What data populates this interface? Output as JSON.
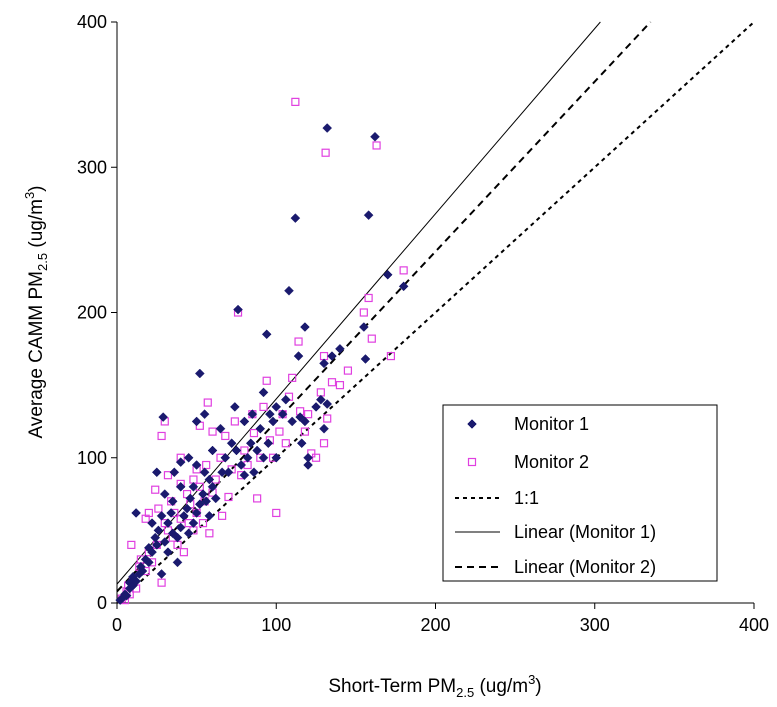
{
  "chart_data": {
    "type": "scatter",
    "xlabel": {
      "main": "Short-Term PM",
      "sub": "2.5",
      "unit_pre": " (ug/m",
      "sup": "3",
      "unit_post": ")"
    },
    "ylabel": {
      "main": "Average CAMM PM",
      "sub": "2.5",
      "unit_pre": " (ug/m",
      "sup": "3",
      "unit_post": ")"
    },
    "xlim": [
      0,
      400
    ],
    "ylim": [
      0,
      400
    ],
    "x_ticks": [
      "0",
      "100",
      "200",
      "300",
      "400"
    ],
    "y_ticks": [
      "0",
      "100",
      "200",
      "300",
      "400"
    ],
    "grid": false,
    "legend_position": "bottom-right",
    "series": [
      {
        "name": "Monitor 1",
        "marker": "diamond",
        "color": "#1a1a6e",
        "points": [
          [
            2,
            2
          ],
          [
            4,
            4
          ],
          [
            5,
            6
          ],
          [
            6,
            5
          ],
          [
            8,
            10
          ],
          [
            8,
            14
          ],
          [
            10,
            12
          ],
          [
            10,
            18
          ],
          [
            12,
            15
          ],
          [
            12,
            62
          ],
          [
            14,
            20
          ],
          [
            15,
            25
          ],
          [
            16,
            22
          ],
          [
            18,
            30
          ],
          [
            20,
            28
          ],
          [
            20,
            38
          ],
          [
            22,
            35
          ],
          [
            22,
            55
          ],
          [
            24,
            45
          ],
          [
            25,
            40
          ],
          [
            25,
            90
          ],
          [
            26,
            50
          ],
          [
            28,
            60
          ],
          [
            28,
            20
          ],
          [
            29,
            128
          ],
          [
            30,
            42
          ],
          [
            30,
            75
          ],
          [
            32,
            55
          ],
          [
            32,
            35
          ],
          [
            34,
            62
          ],
          [
            35,
            70
          ],
          [
            35,
            48
          ],
          [
            36,
            90
          ],
          [
            38,
            45
          ],
          [
            38,
            28
          ],
          [
            40,
            52
          ],
          [
            40,
            80
          ],
          [
            40,
            97
          ],
          [
            42,
            60
          ],
          [
            44,
            65
          ],
          [
            45,
            48
          ],
          [
            45,
            100
          ],
          [
            46,
            72
          ],
          [
            48,
            55
          ],
          [
            48,
            80
          ],
          [
            50,
            62
          ],
          [
            50,
            95
          ],
          [
            50,
            125
          ],
          [
            52,
            158
          ],
          [
            52,
            68
          ],
          [
            54,
            75
          ],
          [
            55,
            90
          ],
          [
            55,
            130
          ],
          [
            56,
            70
          ],
          [
            58,
            85
          ],
          [
            58,
            60
          ],
          [
            60,
            80
          ],
          [
            60,
            105
          ],
          [
            62,
            72
          ],
          [
            65,
            120
          ],
          [
            66,
            90
          ],
          [
            68,
            100
          ],
          [
            70,
            90
          ],
          [
            72,
            110
          ],
          [
            74,
            135
          ],
          [
            75,
            105
          ],
          [
            76,
            202
          ],
          [
            78,
            95
          ],
          [
            80,
            88
          ],
          [
            80,
            125
          ],
          [
            82,
            100
          ],
          [
            84,
            110
          ],
          [
            85,
            130
          ],
          [
            86,
            90
          ],
          [
            88,
            105
          ],
          [
            90,
            120
          ],
          [
            92,
            100
          ],
          [
            92,
            145
          ],
          [
            94,
            185
          ],
          [
            95,
            110
          ],
          [
            96,
            130
          ],
          [
            98,
            125
          ],
          [
            100,
            100
          ],
          [
            100,
            135
          ],
          [
            104,
            130
          ],
          [
            106,
            140
          ],
          [
            108,
            215
          ],
          [
            110,
            125
          ],
          [
            112,
            265
          ],
          [
            114,
            170
          ],
          [
            115,
            128
          ],
          [
            116,
            110
          ],
          [
            118,
            190
          ],
          [
            118,
            125
          ],
          [
            120,
            100
          ],
          [
            120,
            95
          ],
          [
            125,
            135
          ],
          [
            128,
            140
          ],
          [
            130,
            165
          ],
          [
            130,
            120
          ],
          [
            132,
            327
          ],
          [
            132,
            137
          ],
          [
            135,
            170
          ],
          [
            140,
            175
          ],
          [
            155,
            190
          ],
          [
            156,
            168
          ],
          [
            158,
            267
          ],
          [
            162,
            321
          ],
          [
            170,
            226
          ],
          [
            180,
            218
          ]
        ]
      },
      {
        "name": "Monitor 2",
        "marker": "square-open",
        "color": "#e040e0",
        "points": [
          [
            3,
            3
          ],
          [
            5,
            2
          ],
          [
            6,
            8
          ],
          [
            7,
            12
          ],
          [
            8,
            6
          ],
          [
            9,
            40
          ],
          [
            10,
            15
          ],
          [
            12,
            10
          ],
          [
            14,
            25
          ],
          [
            15,
            30
          ],
          [
            18,
            22
          ],
          [
            18,
            58
          ],
          [
            20,
            35
          ],
          [
            20,
            62
          ],
          [
            22,
            28
          ],
          [
            24,
            78
          ],
          [
            25,
            40
          ],
          [
            26,
            65
          ],
          [
            28,
            115
          ],
          [
            28,
            14
          ],
          [
            30,
            125
          ],
          [
            30,
            55
          ],
          [
            32,
            50
          ],
          [
            32,
            88
          ],
          [
            34,
            70
          ],
          [
            35,
            45
          ],
          [
            36,
            62
          ],
          [
            38,
            40
          ],
          [
            40,
            82
          ],
          [
            40,
            100
          ],
          [
            40,
            58
          ],
          [
            42,
            35
          ],
          [
            44,
            75
          ],
          [
            45,
            55
          ],
          [
            46,
            68
          ],
          [
            48,
            85
          ],
          [
            48,
            50
          ],
          [
            50,
            62
          ],
          [
            50,
            92
          ],
          [
            52,
            80
          ],
          [
            52,
            122
          ],
          [
            54,
            55
          ],
          [
            55,
            70
          ],
          [
            56,
            95
          ],
          [
            57,
            138
          ],
          [
            58,
            48
          ],
          [
            60,
            76
          ],
          [
            60,
            118
          ],
          [
            62,
            85
          ],
          [
            65,
            100
          ],
          [
            66,
            60
          ],
          [
            68,
            115
          ],
          [
            70,
            73
          ],
          [
            72,
            92
          ],
          [
            74,
            125
          ],
          [
            76,
            200
          ],
          [
            78,
            88
          ],
          [
            80,
            105
          ],
          [
            82,
            95
          ],
          [
            85,
            130
          ],
          [
            86,
            117
          ],
          [
            88,
            72
          ],
          [
            90,
            100
          ],
          [
            92,
            135
          ],
          [
            94,
            153
          ],
          [
            96,
            112
          ],
          [
            98,
            100
          ],
          [
            100,
            62
          ],
          [
            102,
            118
          ],
          [
            104,
            130
          ],
          [
            106,
            110
          ],
          [
            108,
            142
          ],
          [
            110,
            155
          ],
          [
            112,
            345
          ],
          [
            114,
            180
          ],
          [
            115,
            132
          ],
          [
            118,
            118
          ],
          [
            120,
            130
          ],
          [
            122,
            103
          ],
          [
            125,
            100
          ],
          [
            128,
            145
          ],
          [
            130,
            170
          ],
          [
            130,
            110
          ],
          [
            131,
            310
          ],
          [
            132,
            127
          ],
          [
            135,
            152
          ],
          [
            140,
            150
          ],
          [
            145,
            160
          ],
          [
            155,
            200
          ],
          [
            158,
            210
          ],
          [
            160,
            182
          ],
          [
            163,
            315
          ],
          [
            172,
            170
          ],
          [
            180,
            229
          ]
        ]
      }
    ],
    "lines": [
      {
        "name": "1:1",
        "style": "dotted",
        "slope": 1,
        "intercept": 0
      },
      {
        "name": "Linear (Monitor 1)",
        "style": "solid",
        "slope": 1.275,
        "intercept": 13
      },
      {
        "name": "Linear (Monitor 2)",
        "style": "dashed",
        "slope": 1.17,
        "intercept": 8
      }
    ]
  }
}
